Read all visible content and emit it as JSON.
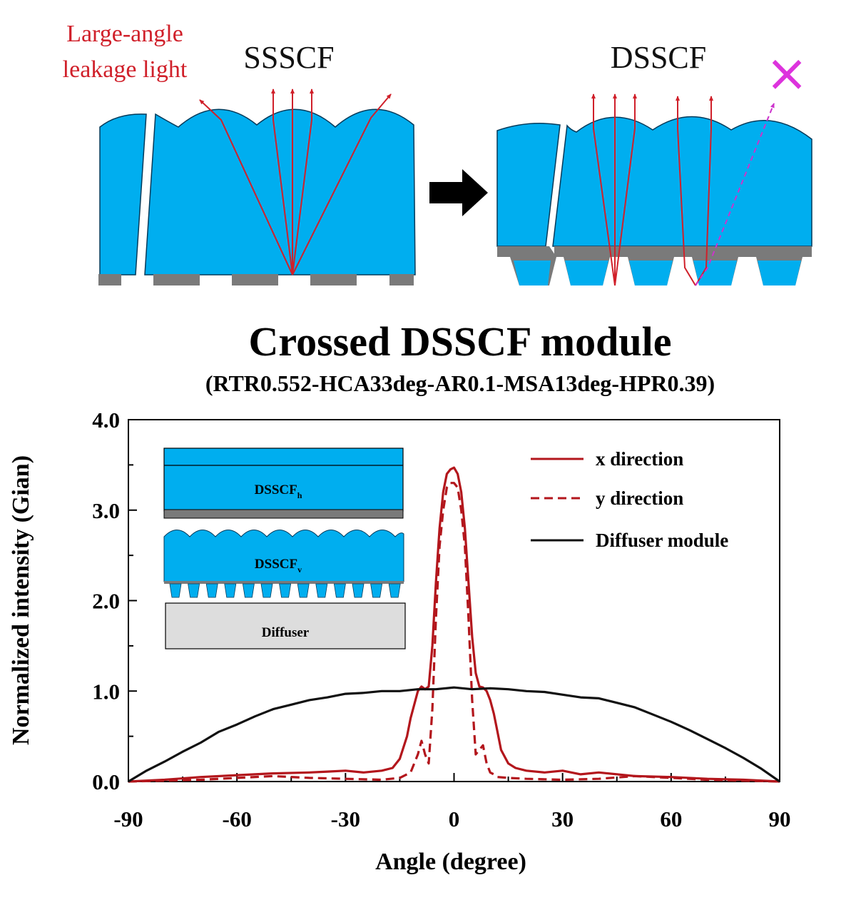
{
  "diagram": {
    "left_label_line1": "Large-angle",
    "left_label_line2": "leakage light",
    "left_title": "SSSCF",
    "right_title": "DSSCF",
    "rejected_mark": "×"
  },
  "chart_data": {
    "type": "line",
    "title": "Crossed DSSCF module",
    "subtitle": "(RTR0.552-HCA33deg-AR0.1-MSA13deg-HPR0.39)",
    "xlabel": "Angle (degree)",
    "ylabel": "Normalized intensity (Gian)",
    "xlim": [
      -90,
      90
    ],
    "ylim": [
      0,
      4.0
    ],
    "xticks": [
      -90,
      -60,
      -30,
      0,
      30,
      60,
      90
    ],
    "yticks": [
      0.0,
      1.0,
      2.0,
      3.0,
      4.0
    ],
    "ytick_labels": [
      "0.0",
      "1.0",
      "2.0",
      "3.0",
      "4.0"
    ],
    "series": [
      {
        "name": "x direction",
        "color": "#b3161c",
        "dash": "solid",
        "x": [
          -90,
          -80,
          -70,
          -60,
          -50,
          -40,
          -35,
          -30,
          -25,
          -20,
          -17,
          -15,
          -13,
          -12,
          -11,
          -10,
          -9,
          -8,
          -7,
          -6,
          -5,
          -4,
          -3,
          -2,
          -1,
          0,
          1,
          2,
          3,
          4,
          5,
          6,
          7,
          8,
          9,
          10,
          11,
          12,
          13,
          15,
          17,
          20,
          25,
          30,
          35,
          40,
          50,
          60,
          70,
          80,
          90
        ],
        "y": [
          0,
          0.02,
          0.05,
          0.07,
          0.09,
          0.1,
          0.11,
          0.12,
          0.1,
          0.12,
          0.15,
          0.25,
          0.5,
          0.7,
          0.85,
          1.0,
          1.05,
          1.02,
          1.05,
          1.5,
          2.2,
          2.8,
          3.2,
          3.4,
          3.45,
          3.47,
          3.4,
          3.2,
          2.8,
          2.2,
          1.6,
          1.2,
          1.05,
          1.04,
          1.0,
          0.9,
          0.75,
          0.55,
          0.35,
          0.2,
          0.15,
          0.12,
          0.1,
          0.12,
          0.08,
          0.1,
          0.06,
          0.05,
          0.03,
          0.02,
          0
        ]
      },
      {
        "name": "y direction",
        "color": "#b3161c",
        "dash": "dashed",
        "x": [
          -90,
          -70,
          -50,
          -40,
          -30,
          -20,
          -15,
          -12,
          -10,
          -9,
          -8,
          -7,
          -6,
          -5,
          -4,
          -3,
          -2,
          -1,
          0,
          1,
          2,
          3,
          4,
          5,
          6,
          7,
          8,
          9,
          10,
          11,
          12,
          15,
          20,
          30,
          40,
          50,
          60,
          70,
          90
        ],
        "y": [
          0,
          0.02,
          0.06,
          0.04,
          0.03,
          0.02,
          0.04,
          0.1,
          0.3,
          0.45,
          0.3,
          0.2,
          0.8,
          1.8,
          2.6,
          3.0,
          3.25,
          3.3,
          3.3,
          3.25,
          3.0,
          2.6,
          1.8,
          0.9,
          0.3,
          0.35,
          0.4,
          0.2,
          0.1,
          0.08,
          0.05,
          0.04,
          0.03,
          0.02,
          0.03,
          0.06,
          0.04,
          0.02,
          0
        ]
      },
      {
        "name": "Diffuser module",
        "color": "#111111",
        "dash": "solid",
        "x": [
          -90,
          -85,
          -80,
          -75,
          -70,
          -65,
          -60,
          -55,
          -50,
          -45,
          -40,
          -35,
          -30,
          -25,
          -20,
          -15,
          -10,
          -5,
          0,
          5,
          10,
          15,
          20,
          25,
          30,
          35,
          40,
          45,
          50,
          55,
          60,
          65,
          70,
          75,
          80,
          85,
          90
        ],
        "y": [
          0,
          0.12,
          0.22,
          0.33,
          0.43,
          0.55,
          0.63,
          0.72,
          0.8,
          0.85,
          0.9,
          0.93,
          0.97,
          0.98,
          1.0,
          1.0,
          1.02,
          1.02,
          1.04,
          1.02,
          1.03,
          1.02,
          1.0,
          0.99,
          0.96,
          0.93,
          0.92,
          0.87,
          0.82,
          0.74,
          0.66,
          0.57,
          0.47,
          0.37,
          0.26,
          0.14,
          0
        ]
      }
    ],
    "legend": {
      "position": "top-right",
      "entries": [
        "x direction",
        "y direction",
        "Diffuser module"
      ]
    },
    "inset": {
      "layer1_label": "DSSCF",
      "layer1_sub": "h",
      "layer2_label": "DSSCF",
      "layer2_sub": "v",
      "layer3_label": "Diffuser"
    }
  }
}
